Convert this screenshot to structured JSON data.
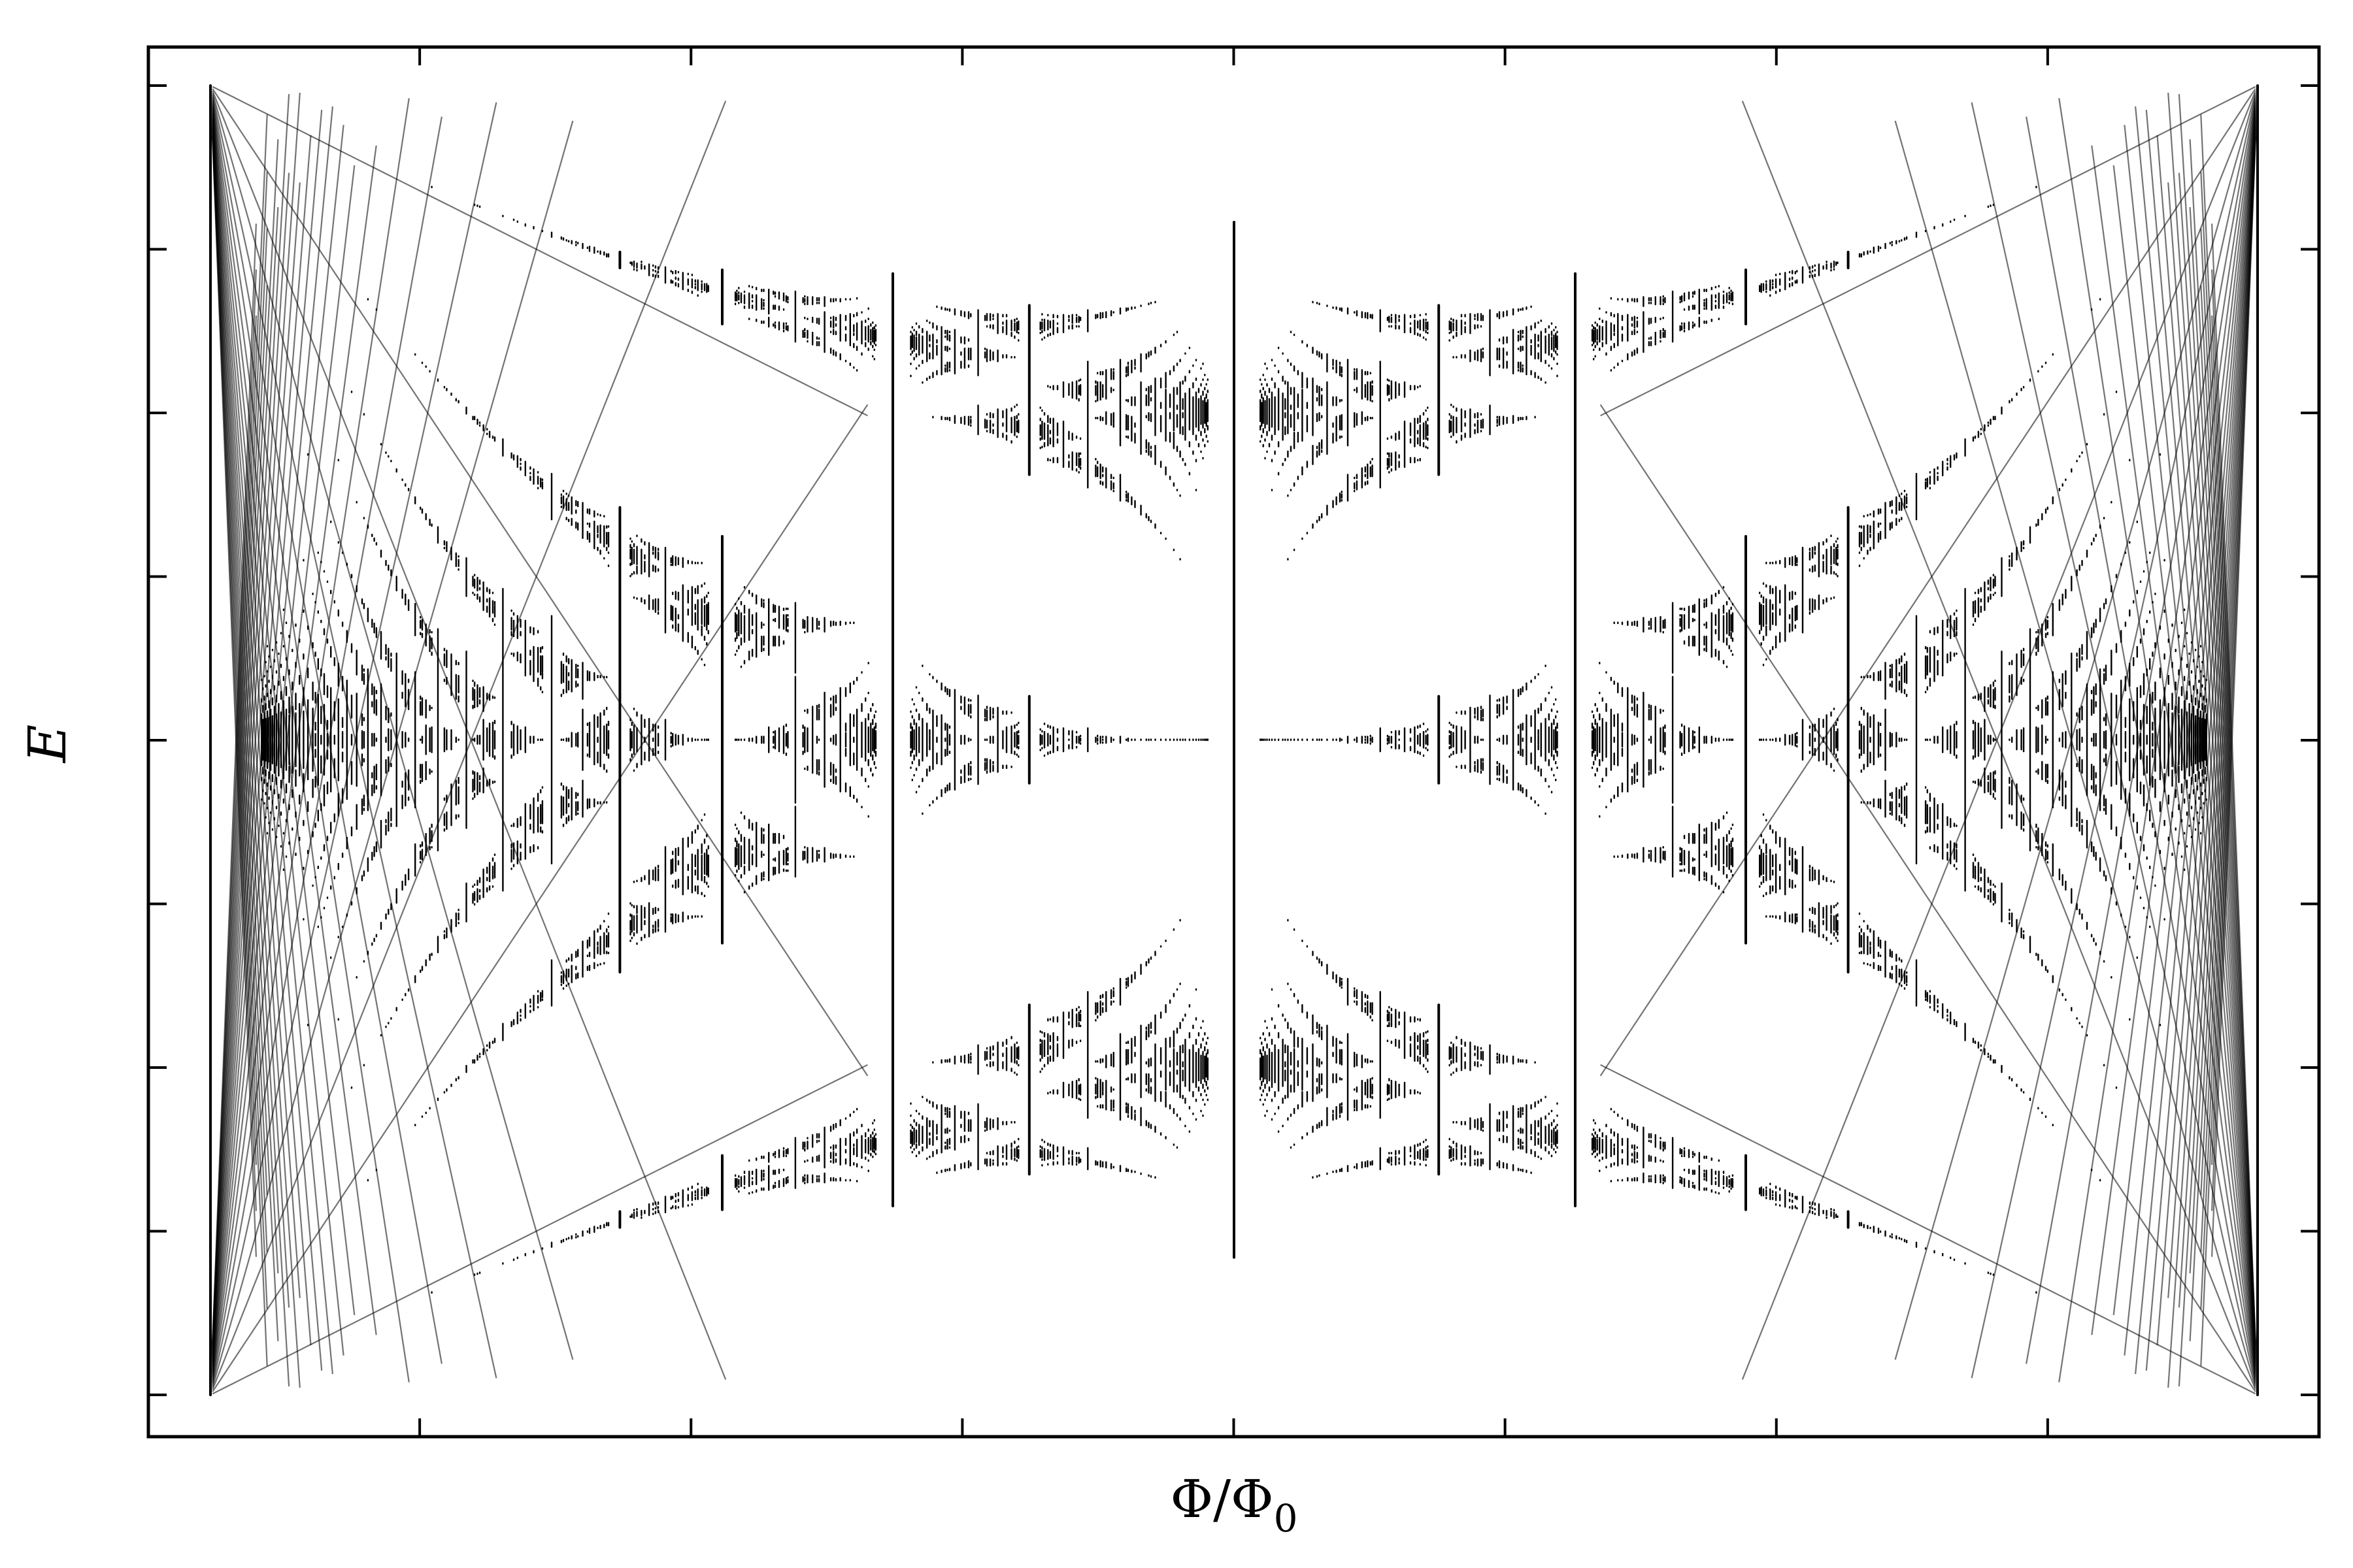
{
  "chart_data": {
    "type": "scatter",
    "xlabel": "Φ/Φ",
    "xlabel_subscript": "0",
    "ylabel": "E",
    "xlim": [
      0,
      1
    ],
    "ylim": [
      -4,
      4
    ],
    "x_ticks_labelled": false,
    "y_ticks_labelled": false,
    "grid": false,
    "legend": "none",
    "series": [
      {
        "kind": "energy spectrum E(Φ/Φ0) of a tight-binding square lattice in a magnetic field (Hofstadter butterfly)",
        "color": "#000000"
      }
    ]
  }
}
